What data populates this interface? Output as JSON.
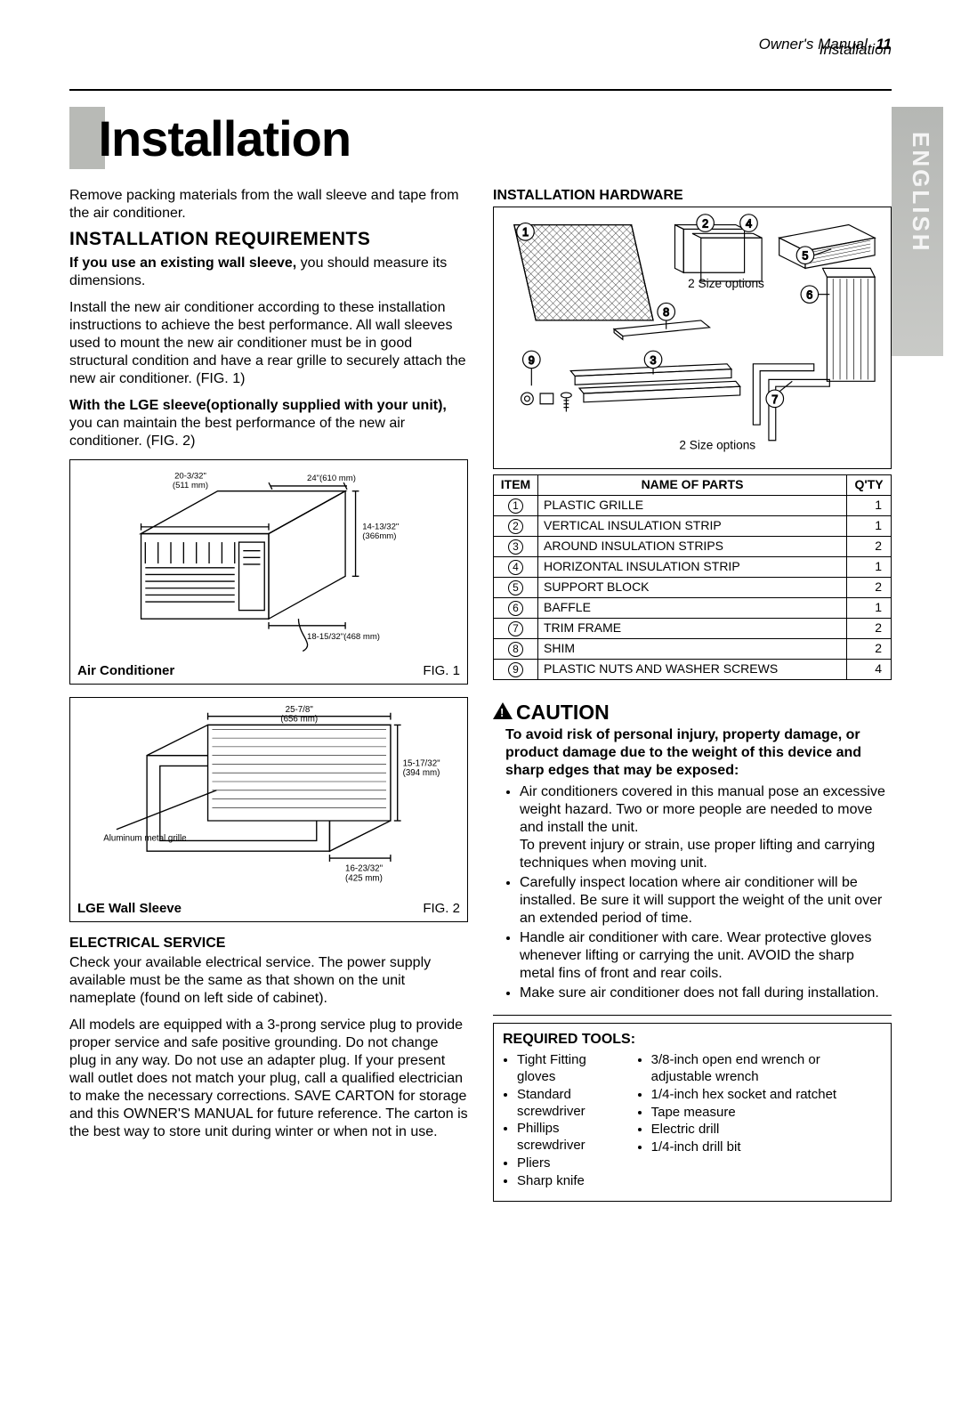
{
  "top_header": "Installation",
  "side_tab": "ENGLISH",
  "page_title": "Installation",
  "intro": "Remove packing materials from the wall sleeve and tape from the air conditioner.",
  "req_heading": "INSTALLATION REQUIREMENTS",
  "req_p1_bold": "If you use an existing wall sleeve,",
  "req_p1_rest": " you should measure its dimensions.",
  "req_p2": "Install the new air conditioner according to these installation instructions to achieve the best performance. All wall sleeves used to mount the new air conditioner must be in good structural condition and have a rear grille to securely attach the new air conditioner. (FIG. 1)",
  "req_p3_bold": "With the LGE sleeve(optionally supplied with your unit),",
  "req_p3_rest": " you can maintain the best performance of the new air conditioner. (FIG. 2)",
  "fig1": {
    "label": "Air Conditioner",
    "caption": "FIG. 1",
    "dim_top": "20-3/32\"\n(511 mm)",
    "dim_right_top": "24\"(610 mm)",
    "dim_right_mid": "14-13/32\"\n(366mm)",
    "dim_bottom": "18-15/32\"(468 mm)"
  },
  "fig2": {
    "label": "LGE Wall Sleeve",
    "caption": "FIG. 2",
    "dim_top": "25-7/8\"\n(656 mm)",
    "dim_right": "15-17/32\"\n(394 mm)",
    "dim_bottom": "16-23/32\"\n(425 mm)",
    "note": "Aluminum metal grille"
  },
  "elec_heading": "ELECTRICAL SERVICE",
  "elec_p1": "Check your available electrical service. The power supply available must be the same as that shown on the unit nameplate (found on left side of cabinet).",
  "elec_p2": "All models are equipped with a 3-prong service plug to provide proper service and safe positive grounding. Do not change plug in any way. Do not use an adapter plug. If your present wall outlet does not match your plug, call a qualified electrician to make the necessary corrections. SAVE CARTON for storage and this OWNER'S MANUAL for future reference. The carton is the best way to store unit during winter or when not in use.",
  "hw_heading": "INSTALLATION HARDWARE",
  "hw_note1": "2 Size options",
  "hw_note2": "2 Size options",
  "parts_header": {
    "item": "ITEM",
    "name": "NAME OF PARTS",
    "qty": "Q'TY"
  },
  "parts": [
    {
      "n": "1",
      "name": "PLASTIC GRILLE",
      "qty": "1"
    },
    {
      "n": "2",
      "name": "VERTICAL INSULATION STRIP",
      "qty": "1"
    },
    {
      "n": "3",
      "name": "AROUND INSULATION STRIPS",
      "qty": "2"
    },
    {
      "n": "4",
      "name": "HORIZONTAL INSULATION STRIP",
      "qty": "1"
    },
    {
      "n": "5",
      "name": "SUPPORT BLOCK",
      "qty": "2"
    },
    {
      "n": "6",
      "name": "BAFFLE",
      "qty": "1"
    },
    {
      "n": "7",
      "name": "TRIM FRAME",
      "qty": "2"
    },
    {
      "n": "8",
      "name": "SHIM",
      "qty": "2"
    },
    {
      "n": "9",
      "name": "PLASTIC NUTS AND WASHER SCREWS",
      "qty": "4"
    }
  ],
  "caution_h": "CAUTION",
  "caution_lead": "To avoid risk of personal injury, property damage, or product damage due to the weight of this device and sharp edges that may be exposed:",
  "caution_items": [
    "Air conditioners covered in this manual pose an excessive weight hazard. Two or more people are needed to move and install the unit.\nTo prevent injury or strain, use proper lifting and carrying techniques when moving unit.",
    "Carefully inspect location where air conditioner will be installed. Be sure it will support the weight of the unit over an extended period of time.",
    "Handle air conditioner with care. Wear protective gloves whenever lifting or carrying the unit. AVOID the sharp metal fins of front and rear coils.",
    "Make sure air conditioner does not fall during installation."
  ],
  "tools_heading": "REQUIRED TOOLS:",
  "tools_left": [
    "Tight Fitting gloves",
    "Standard screwdriver",
    "Phillips screwdriver",
    "Pliers",
    "Sharp knife"
  ],
  "tools_right": [
    "3/8-inch open end wrench or adjustable wrench",
    "1/4-inch hex socket and ratchet",
    "Tape measure",
    "Electric drill",
    "1/4-inch drill bit"
  ],
  "footer_label": "Owner's Manual",
  "footer_page": "11",
  "colors": {
    "tab_bg": "#b8bab6",
    "text": "#000000",
    "bg": "#ffffff"
  }
}
